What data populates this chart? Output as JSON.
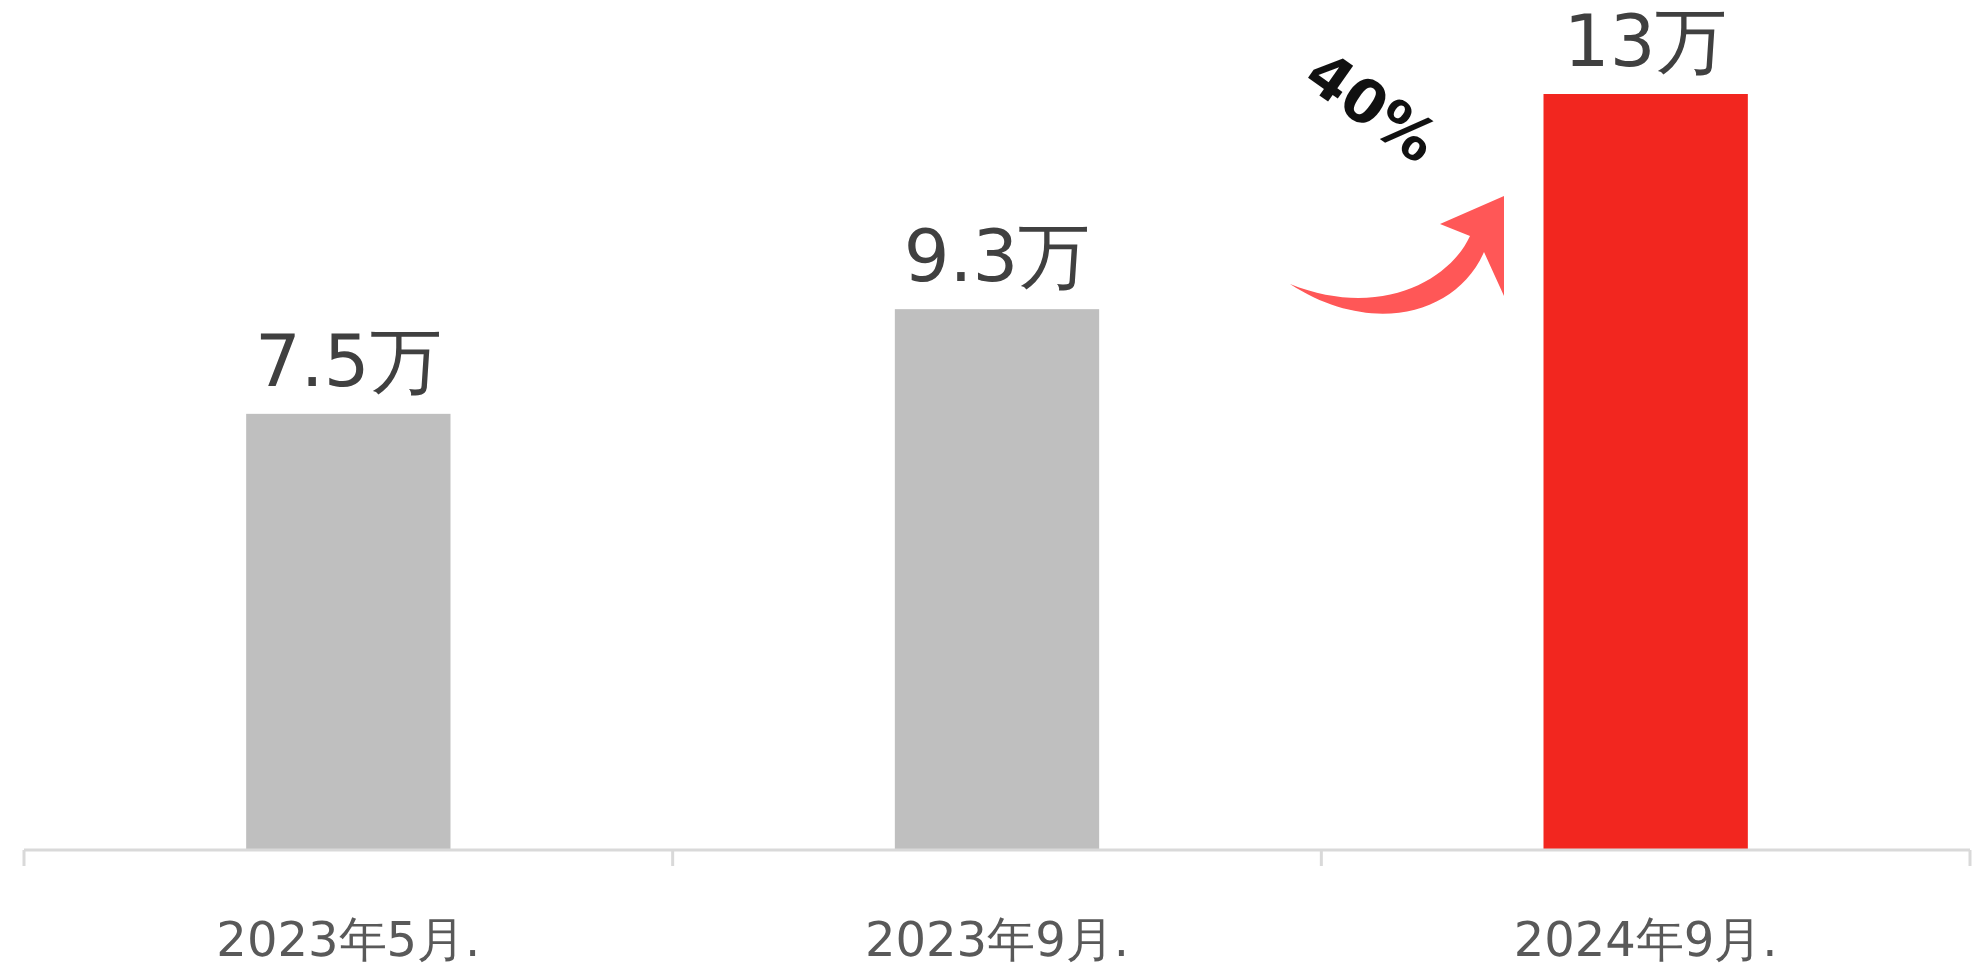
{
  "chart_data": {
    "type": "bar",
    "categories": [
      "2023年5月.",
      "2023年9月.",
      "2024年9月."
    ],
    "values": [
      7.5,
      9.3,
      13
    ],
    "colors": [
      "#bfbfbf",
      "#bfbfbf",
      "#f2261f"
    ],
    "value_labels": [
      "7.5万",
      "9.3万",
      "13万"
    ],
    "annotations": [
      "40%"
    ]
  }
}
